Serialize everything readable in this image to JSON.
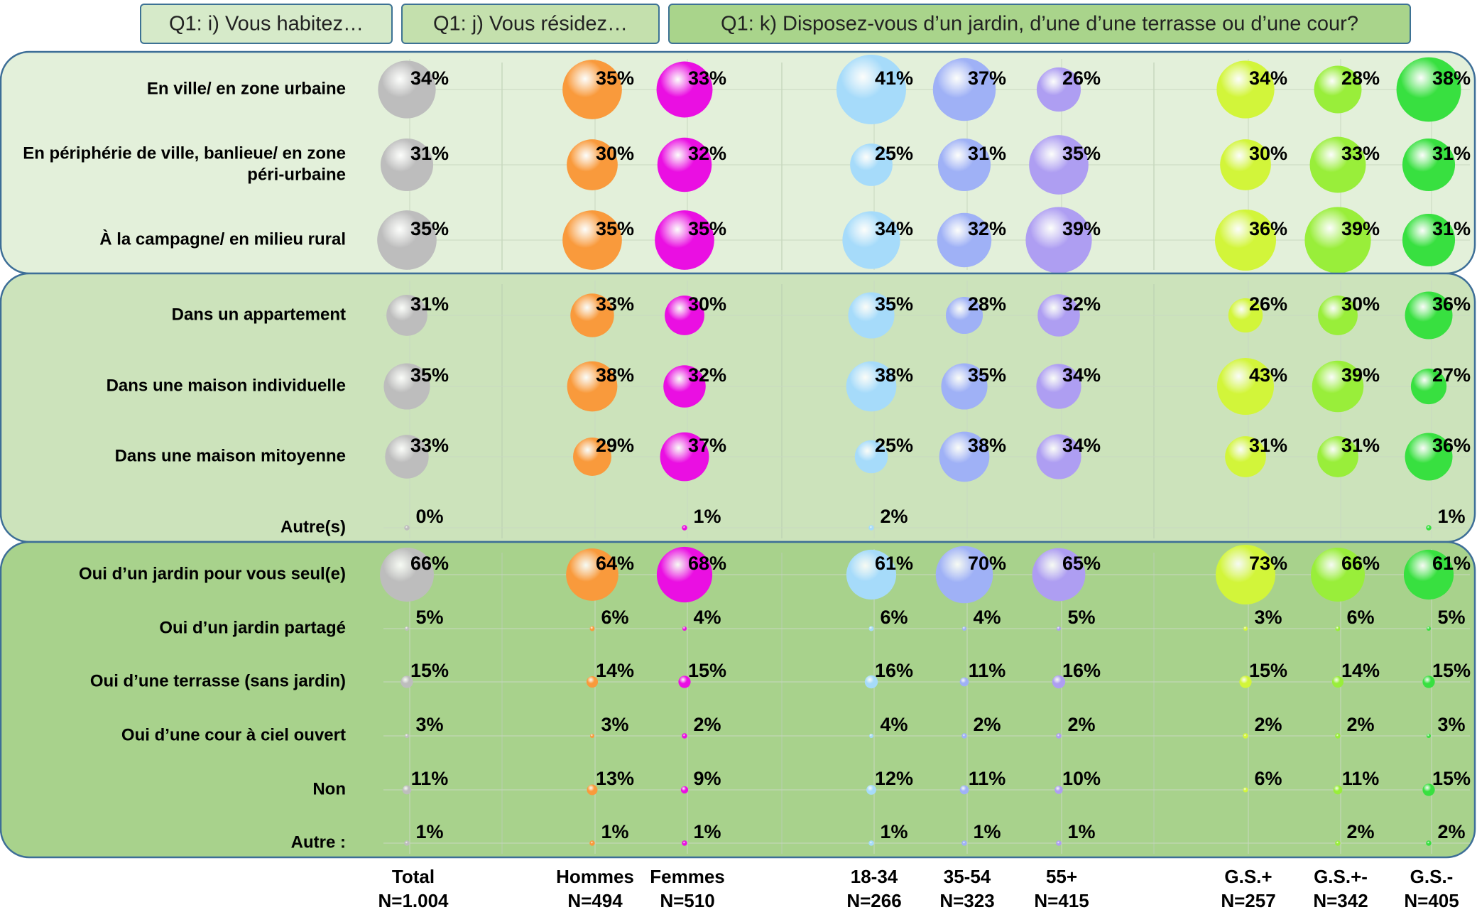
{
  "chart_data": {
    "type": "bubble_table",
    "tabs": [
      "Q1: i) Vous habitez…",
      "Q1: j) Vous résidez…",
      "Q1: k) Disposez-vous d’un jardin, d’une d’une terrasse ou d’une cour?"
    ],
    "columns": [
      {
        "name": "Total",
        "n": "N=1.004",
        "color": "#bdbdbd"
      },
      {
        "name": "Hommes",
        "n": "N=494",
        "color": "#f99a3c"
      },
      {
        "name": "Femmes",
        "n": "N=510",
        "color": "#ea0fe2"
      },
      {
        "name": "18-34",
        "n": "N=266",
        "color": "#a6dbfa"
      },
      {
        "name": "35-54",
        "n": "N=323",
        "color": "#9fb1f6"
      },
      {
        "name": "55+",
        "n": "N=415",
        "color": "#ae9ef2"
      },
      {
        "name": "G.S.+",
        "n": "N=257",
        "color": "#d2f53a"
      },
      {
        "name": "G.S.+-",
        "n": "N=342",
        "color": "#99ee3a"
      },
      {
        "name": "G.S.-",
        "n": "N=405",
        "color": "#38e040"
      }
    ],
    "sections": [
      {
        "color": "#e3f0da",
        "rows": [
          {
            "label": [
              "En ville/ en zone urbaine"
            ],
            "values": [
              34,
              35,
              33,
              41,
              37,
              26,
              34,
              28,
              38
            ],
            "value_labels": [
              "34%",
              "35%",
              "33%",
              "41%",
              "37%",
              "26%",
              "34%",
              "28%",
              "38%"
            ]
          },
          {
            "label": [
              "En périphérie de ville, banlieue/ en zone",
              "péri-urbaine"
            ],
            "values": [
              31,
              30,
              32,
              25,
              31,
              35,
              30,
              33,
              31
            ],
            "value_labels": [
              "31%",
              "30%",
              "32%",
              "25%",
              "31%",
              "35%",
              "30%",
              "33%",
              "31%"
            ]
          },
          {
            "label": [
              "À la campagne/ en milieu rural"
            ],
            "values": [
              35,
              35,
              35,
              34,
              32,
              39,
              36,
              39,
              31
            ],
            "value_labels": [
              "35%",
              "35%",
              "35%",
              "34%",
              "32%",
              "39%",
              "36%",
              "39%",
              "31%"
            ]
          }
        ]
      },
      {
        "color": "#cce3bb",
        "rows": [
          {
            "label": [
              "Dans un appartement"
            ],
            "values": [
              31,
              33,
              30,
              35,
              28,
              32,
              26,
              30,
              36
            ],
            "value_labels": [
              "31%",
              "33%",
              "30%",
              "35%",
              "28%",
              "32%",
              "26%",
              "30%",
              "36%"
            ]
          },
          {
            "label": [
              "Dans une maison individuelle"
            ],
            "values": [
              35,
              38,
              32,
              38,
              35,
              34,
              43,
              39,
              27
            ],
            "value_labels": [
              "35%",
              "38%",
              "32%",
              "38%",
              "35%",
              "34%",
              "43%",
              "39%",
              "27%"
            ]
          },
          {
            "label": [
              "Dans une maison mitoyenne"
            ],
            "values": [
              33,
              29,
              37,
              25,
              38,
              34,
              31,
              31,
              36
            ],
            "value_labels": [
              "33%",
              "29%",
              "37%",
              "25%",
              "38%",
              "34%",
              "31%",
              "31%",
              "36%"
            ]
          },
          {
            "label": [
              "Autre(s)"
            ],
            "values": [
              0,
              null,
              1,
              2,
              null,
              null,
              null,
              null,
              1
            ],
            "value_labels": [
              "0%",
              null,
              "1%",
              "2%",
              null,
              null,
              null,
              null,
              "1%"
            ]
          }
        ]
      },
      {
        "color": "#a8d28c",
        "rows": [
          {
            "label": [
              "Oui d’un jardin pour vous seul(e)"
            ],
            "values": [
              66,
              64,
              68,
              61,
              70,
              65,
              73,
              66,
              61
            ],
            "value_labels": [
              "66%",
              "64%",
              "68%",
              "61%",
              "70%",
              "65%",
              "73%",
              "66%",
              "61%"
            ]
          },
          {
            "label": [
              "Oui d’un jardin partagé"
            ],
            "values": [
              5,
              6,
              4,
              6,
              4,
              5,
              3,
              6,
              5
            ],
            "value_labels": [
              "5%",
              "6%",
              "4%",
              "6%",
              "4%",
              "5%",
              "3%",
              "6%",
              "5%"
            ]
          },
          {
            "label": [
              "Oui d’une terrasse (sans jardin)"
            ],
            "values": [
              15,
              14,
              15,
              16,
              11,
              16,
              15,
              14,
              15
            ],
            "value_labels": [
              "15%",
              "14%",
              "15%",
              "16%",
              "11%",
              "16%",
              "15%",
              "14%",
              "15%"
            ]
          },
          {
            "label": [
              "Oui d’une cour à ciel ouvert"
            ],
            "values": [
              3,
              3,
              2,
              4,
              2,
              2,
              2,
              2,
              3
            ],
            "value_labels": [
              "3%",
              "3%",
              "2%",
              "4%",
              "2%",
              "2%",
              "2%",
              "2%",
              "3%"
            ]
          },
          {
            "label": [
              "Non"
            ],
            "values": [
              11,
              13,
              9,
              12,
              11,
              10,
              6,
              11,
              15
            ],
            "value_labels": [
              "11%",
              "13%",
              "9%",
              "12%",
              "11%",
              "10%",
              "6%",
              "11%",
              "15%"
            ]
          },
          {
            "label": [
              "Autre :"
            ],
            "values": [
              1,
              1,
              1,
              1,
              1,
              1,
              null,
              2,
              2
            ],
            "value_labels": [
              "1%",
              "1%",
              "1%",
              "1%",
              "1%",
              "1%",
              null,
              "2%",
              "2%"
            ]
          }
        ]
      }
    ]
  }
}
